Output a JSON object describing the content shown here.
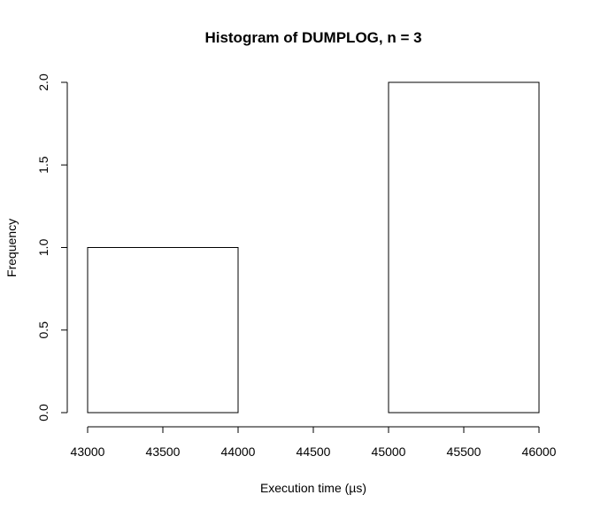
{
  "chart_data": {
    "type": "bar",
    "title": "Histogram of DUMPLOG, n = 3",
    "xlabel": "Execution time (µs)",
    "ylabel": "Frequency",
    "bins": [
      {
        "start": 43000,
        "end": 44000,
        "count": 1
      },
      {
        "start": 44000,
        "end": 45000,
        "count": 0
      },
      {
        "start": 45000,
        "end": 46000,
        "count": 2
      }
    ],
    "xlim": [
      43000,
      46000
    ],
    "ylim": [
      0,
      2
    ],
    "x_ticks": [
      43000,
      43500,
      44000,
      44500,
      45000,
      45500,
      46000
    ],
    "x_tick_labels": [
      "43000",
      "43500",
      "44000",
      "44500",
      "45000",
      "45500",
      "46000"
    ],
    "y_ticks": [
      0,
      0.5,
      1,
      1.5,
      2
    ],
    "y_tick_labels": [
      "0.0",
      "0.5",
      "1.0",
      "1.5",
      "2.0"
    ],
    "grid": false,
    "bar_fill": "#ffffff",
    "bar_stroke": "#000000"
  }
}
